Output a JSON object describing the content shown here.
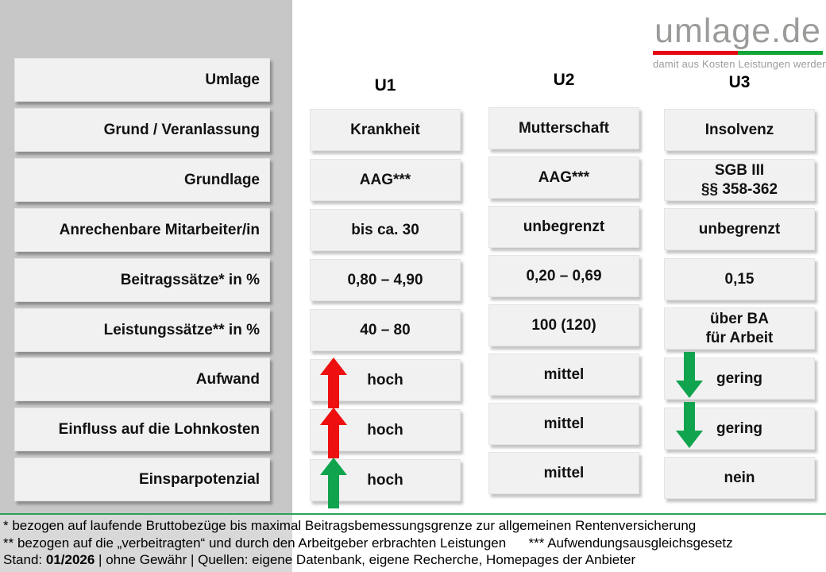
{
  "logo": {
    "text": "umlage.de",
    "tagline": "damit aus Kosten Leistungen werden"
  },
  "table": {
    "row_labels": [
      "Umlage",
      "Grund / Veranlassung",
      "Grundlage",
      "Anrechenbare Mitarbeiter/in",
      "Beitragssätze* in %",
      "Leistungssätze** in %",
      "Aufwand",
      "Einfluss auf die Lohnkosten",
      "Einsparpotenzial"
    ],
    "columns": [
      {
        "header": "U1",
        "cells": [
          {
            "text": "Krankheit"
          },
          {
            "text": "AAG***"
          },
          {
            "text": "bis ca. 30"
          },
          {
            "text": "0,80 – 4,90"
          },
          {
            "text": "40 – 80"
          },
          {
            "text": "hoch",
            "arrow": "up-red"
          },
          {
            "text": "hoch",
            "arrow": "up-red"
          },
          {
            "text": "hoch",
            "arrow": "up-green"
          }
        ]
      },
      {
        "header": "U2",
        "cells": [
          {
            "text": "Mutterschaft"
          },
          {
            "text": "AAG***"
          },
          {
            "text": "unbegrenzt"
          },
          {
            "text": "0,20 – 0,69"
          },
          {
            "text": "100 (120)"
          },
          {
            "text": "mittel"
          },
          {
            "text": "mittel"
          },
          {
            "text": "mittel"
          }
        ]
      },
      {
        "header": "U3",
        "cells": [
          {
            "text": "Insolvenz"
          },
          {
            "text": "SGB III\n§§ 358-362"
          },
          {
            "text": "unbegrenzt"
          },
          {
            "text": "0,15"
          },
          {
            "text": "über BA\nfür Arbeit"
          },
          {
            "text": "gering",
            "arrow": "down-green"
          },
          {
            "text": "gering",
            "arrow": "down-green"
          },
          {
            "text": "nein"
          }
        ]
      }
    ]
  },
  "footer": {
    "line1": "* bezogen auf laufende Bruttobezüge bis maximal Beitragsbemessungsgrenze zur allgemeinen Rentenversicherung",
    "line2": "** bezogen auf die „verbeitragten“ und durch den Arbeitgeber erbrachten Leistungen      *** Aufwendungsausgleichsgesetz",
    "line3_prefix": "Stand: ",
    "line3_bold": "01/2026",
    "line3_suffix": " | ohne Gewähr | Quellen: eigene Datenbank, eigene Recherche, Homepages der Anbieter"
  },
  "colors": {
    "arrow_red": "#ee1010",
    "arrow_green": "#10a44e",
    "logo_bar_red": "#e30613",
    "logo_bar_green": "#12a538",
    "separator_green": "#2aa35c",
    "panel_gray": "#c7c7c7",
    "box_gray": "#f1f1f1"
  }
}
